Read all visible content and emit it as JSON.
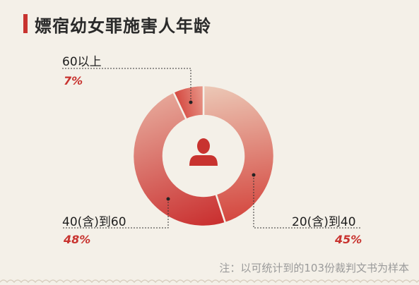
{
  "header": {
    "title": "嫖宿幼女罪施害人年龄"
  },
  "chart_data": {
    "type": "pie",
    "title": "嫖宿幼女罪施害人年龄",
    "slices": [
      {
        "label": "20(含)到40",
        "value": 45,
        "display": "45%",
        "colors": [
          "#ecc9b7",
          "#d4463e"
        ]
      },
      {
        "label": "40(含)到60",
        "value": 48,
        "display": "48%",
        "colors": [
          "#c92e2e",
          "#e6a698"
        ]
      },
      {
        "label": "60以上",
        "value": 7,
        "display": "7%",
        "colors": [
          "#d4463e",
          "#e89a8c"
        ]
      }
    ],
    "center_icon": "person-icon"
  },
  "footnote": "注：以可统计到的103份裁判文书为样本",
  "colors": {
    "background": "#f4f0e8",
    "accent": "#c8332f"
  }
}
